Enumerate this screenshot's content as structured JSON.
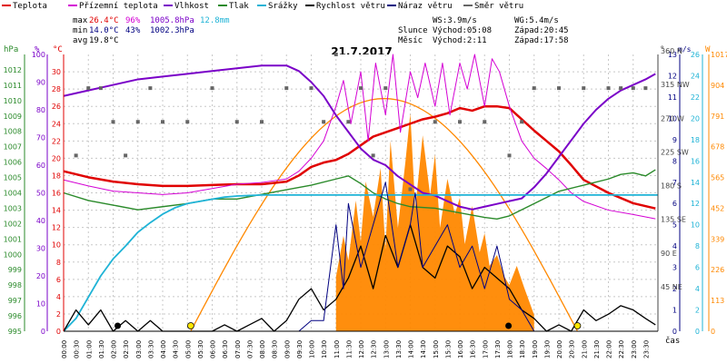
{
  "legend": [
    {
      "label": "Teplota",
      "color": "#e00000"
    },
    {
      "label": "Přízemní teplota",
      "color": "#d400d4"
    },
    {
      "label": "Vlhkost",
      "color": "#7a00c8"
    },
    {
      "label": "Tlak",
      "color": "#2a8a2a"
    },
    {
      "label": "Srážky",
      "color": "#1fb3d6"
    },
    {
      "label": "Rychlost větru",
      "color": "#000000"
    },
    {
      "label": "Náraz větru",
      "color": "#000080"
    },
    {
      "label": "Směr větru",
      "color": "#666666"
    }
  ],
  "stats": {
    "max": {
      "label": "max",
      "temp": "26.4°C",
      "hum": "96%",
      "press": "1005.8hPa",
      "rain": "12.8mm"
    },
    "min": {
      "label": "min",
      "temp": "14.0°C",
      "hum": "43%",
      "press": "1002.3hPa"
    },
    "avg": {
      "label": "avg",
      "temp": "19.8°C"
    }
  },
  "wind_info": {
    "ws": "WS:3.9m/s",
    "wg": "WG:5.4m/s"
  },
  "sun": {
    "label": "Slunce",
    "rise": "Východ:05:08",
    "set": "Západ:20:45"
  },
  "moon": {
    "label": "Měsíc",
    "rise": "Východ:2:11",
    "set": "Západ:17:58"
  },
  "title": "21.7.2017",
  "axis_units": {
    "hpa": "hPa",
    "pct": "%",
    "degc": "°C",
    "deg": "°",
    "ms": "m/s",
    "wm2": "W",
    "time": "čas"
  },
  "colors": {
    "temp": "#e00000",
    "ground": "#d400d4",
    "hum": "#7a00c8",
    "press": "#2a8a2a",
    "rain": "#1fb3d6",
    "wind": "#000000",
    "gust": "#000080",
    "dir": "#666666",
    "solar": "#ff8800",
    "solar_curve": "#ff8800"
  },
  "chart_data": {
    "type": "line",
    "title": "21.7.2017",
    "x_ticks": [
      "00:00",
      "00:30",
      "01:00",
      "01:30",
      "02:00",
      "02:30",
      "03:00",
      "03:30",
      "04:00",
      "04:30",
      "05:00",
      "05:30",
      "06:00",
      "06:30",
      "07:00",
      "07:30",
      "08:00",
      "08:30",
      "09:00",
      "09:30",
      "10:00",
      "10:30",
      "11:00",
      "11:30",
      "12:00",
      "12:30",
      "13:00",
      "13:30",
      "14:00",
      "14:30",
      "15:00",
      "15:30",
      "16:00",
      "16:30",
      "17:00",
      "17:30",
      "18:00",
      "18:30",
      "19:00",
      "19:30",
      "20:00",
      "20:30",
      "21:00",
      "21:30",
      "22:00",
      "22:30",
      "23:00",
      "23:30"
    ],
    "axes": {
      "pressure": {
        "unit": "hPa",
        "ylim": [
          995,
          1013
        ],
        "ticks": [
          "995",
          "996",
          "997",
          "998",
          "999",
          "1000",
          "1001",
          "1002",
          "1003",
          "1004",
          "1005",
          "1006",
          "1007",
          "1008",
          "1009",
          "1010",
          "1011",
          "1012"
        ]
      },
      "humidity": {
        "unit": "%",
        "ylim": [
          0,
          100
        ],
        "ticks": [
          "0",
          "10",
          "20",
          "30",
          "40",
          "50",
          "60",
          "70",
          "80",
          "90",
          "100"
        ]
      },
      "temperature": {
        "unit": "°C",
        "ylim": [
          0,
          32
        ],
        "ticks": [
          "0",
          "2",
          "4",
          "6",
          "8",
          "10",
          "12",
          "14",
          "16",
          "18",
          "20",
          "22",
          "24",
          "26",
          "28",
          "30"
        ]
      },
      "direction": {
        "unit": "°",
        "ticks": [
          "45 NE",
          "90 E",
          "135 SE",
          "180 S",
          "225 SW",
          "270 W",
          "315 NW",
          "360 N"
        ]
      },
      "wind": {
        "unit": "m/s",
        "ylim": [
          0,
          13
        ],
        "ticks": [
          "0",
          "1",
          "2",
          "3",
          "4",
          "5",
          "6",
          "7",
          "8",
          "9",
          "10",
          "11",
          "12",
          "13"
        ]
      },
      "rain": {
        "unit": "mm",
        "ylim": [
          0,
          26
        ],
        "ticks": [
          "0",
          "2",
          "4",
          "6",
          "8",
          "10",
          "12",
          "14",
          "16",
          "18",
          "20",
          "22",
          "24",
          "26"
        ]
      },
      "solar": {
        "unit": "W",
        "ylim": [
          0,
          1017
        ],
        "ticks": [
          "0",
          "113",
          "226",
          "339",
          "452",
          "565",
          "678",
          "791",
          "904",
          "1017"
        ]
      }
    },
    "series": [
      {
        "name": "Teplota",
        "axis": "temperature",
        "x": [
          0,
          1,
          2,
          3,
          4,
          5,
          6,
          7,
          8,
          9,
          9.5,
          10,
          10.5,
          11,
          11.5,
          12,
          12.5,
          13,
          13.5,
          14,
          14.5,
          15,
          15.5,
          16,
          16.5,
          17,
          17.5,
          18,
          18.5,
          19,
          19.5,
          20,
          20.5,
          21,
          22,
          23,
          23.9
        ],
        "values": [
          18.5,
          17.8,
          17.3,
          17,
          16.8,
          16.8,
          16.9,
          17,
          17,
          17.3,
          18,
          19,
          19.5,
          19.8,
          20.5,
          21.5,
          22.5,
          23,
          23.5,
          24,
          24.5,
          24.8,
          25.2,
          25.8,
          25.5,
          26,
          26,
          25.8,
          24.5,
          23.2,
          22,
          20.8,
          19.2,
          17.5,
          16,
          14.8,
          14.2
        ]
      },
      {
        "name": "Přízemní teplota",
        "axis": "temperature",
        "x": [
          0,
          1,
          2,
          3,
          4,
          5,
          6,
          7,
          8,
          9,
          9.5,
          10,
          10.5,
          11,
          11.3,
          11.6,
          12,
          12.3,
          12.6,
          13,
          13.3,
          13.6,
          14,
          14.3,
          14.6,
          15,
          15.3,
          15.6,
          16,
          16.3,
          16.6,
          17,
          17.3,
          17.6,
          18,
          18.5,
          19,
          19.5,
          20,
          20.5,
          21,
          22,
          23,
          23.9
        ],
        "values": [
          17.5,
          16.8,
          16.2,
          16,
          15.8,
          16,
          16.5,
          17,
          17.2,
          17.6,
          18.5,
          20,
          22,
          26,
          29,
          24,
          30,
          22,
          31,
          25,
          32,
          23,
          30,
          27,
          31,
          26,
          31,
          25,
          31,
          28,
          32,
          26,
          31.5,
          30,
          26,
          22,
          20,
          18.8,
          17.5,
          16,
          15,
          14,
          13.5,
          13
        ]
      },
      {
        "name": "Vlhkost",
        "axis": "humidity",
        "x": [
          0,
          1,
          2,
          3,
          4,
          5,
          6,
          7,
          8,
          9,
          9.5,
          10,
          10.5,
          11,
          11.5,
          12,
          12.5,
          13,
          13.5,
          14,
          14.5,
          15,
          15.5,
          16,
          16.5,
          17,
          17.5,
          18,
          18.5,
          19,
          19.5,
          20,
          20.5,
          21,
          21.5,
          22,
          22.5,
          23,
          23.5,
          23.9
        ],
        "values": [
          85,
          87,
          89,
          91,
          92,
          93,
          94,
          95,
          96,
          96,
          94,
          90,
          85,
          78,
          72,
          66,
          62,
          60,
          56,
          53,
          50,
          49,
          47,
          45,
          44,
          45,
          46,
          47,
          48,
          52,
          57,
          63,
          69,
          75,
          80,
          84,
          87,
          89,
          91,
          93
        ]
      },
      {
        "name": "Tlak",
        "axis": "pressure",
        "x": [
          0,
          1,
          2,
          3,
          4,
          5,
          6,
          7,
          8,
          9,
          10,
          11,
          11.5,
          12,
          12.5,
          13,
          13.5,
          14,
          15,
          16,
          17,
          17.5,
          18,
          18.5,
          19,
          19.5,
          20,
          21,
          22,
          22.5,
          23,
          23.5,
          23.9
        ],
        "values": [
          1004,
          1003.5,
          1003.2,
          1002.9,
          1003.1,
          1003.3,
          1003.6,
          1003.6,
          1003.9,
          1004.2,
          1004.5,
          1004.9,
          1005.1,
          1004.6,
          1004,
          1003.6,
          1003.3,
          1003.1,
          1003,
          1002.7,
          1002.4,
          1002.3,
          1002.5,
          1002.9,
          1003.3,
          1003.7,
          1004.1,
          1004.5,
          1004.9,
          1005.2,
          1005.3,
          1005.1,
          1005.5
        ]
      },
      {
        "name": "Srážky",
        "axis": "rain",
        "x": [
          0,
          0.5,
          1,
          1.5,
          2,
          2.5,
          3,
          3.5,
          4,
          4.5,
          5,
          5.5,
          6,
          6.5,
          7,
          7.5,
          8,
          8.5,
          24
        ],
        "values": [
          0,
          1.2,
          3.2,
          5.2,
          6.8,
          8,
          9.3,
          10.2,
          11,
          11.6,
          12,
          12.2,
          12.4,
          12.6,
          12.7,
          12.75,
          12.8,
          12.8,
          12.8
        ]
      },
      {
        "name": "Rychlost větru",
        "axis": "wind",
        "x": [
          0,
          0.5,
          1,
          1.5,
          2,
          2.5,
          3,
          3.5,
          4,
          4.5,
          5,
          5.5,
          6,
          6.5,
          7,
          7.5,
          8,
          8.5,
          9,
          9.5,
          10,
          10.5,
          11,
          11.5,
          12,
          12.5,
          13,
          13.5,
          14,
          14.5,
          15,
          15.5,
          16,
          16.5,
          17,
          17.5,
          18,
          18.5,
          19,
          19.5,
          20,
          20.5,
          21,
          21.5,
          22,
          22.5,
          23,
          23.5,
          23.9
        ],
        "values": [
          0,
          1,
          0.3,
          1,
          0,
          0.5,
          0,
          0.5,
          0,
          0,
          0,
          0,
          0,
          0.3,
          0,
          0.3,
          0.6,
          0,
          0.5,
          1.5,
          2,
          1,
          1.5,
          2.5,
          4,
          2,
          4.5,
          3,
          5,
          3,
          2.5,
          4,
          3.5,
          2,
          3,
          2.5,
          2,
          1,
          0.6,
          0,
          0.3,
          0,
          1,
          0.5,
          0.8,
          1.2,
          1,
          0.6,
          0.3
        ]
      },
      {
        "name": "Náraz větru",
        "axis": "wind",
        "x": [
          0,
          1,
          2,
          3,
          4,
          5,
          6,
          7,
          8,
          9,
          9.5,
          10,
          10.5,
          11,
          11.3,
          11.5,
          12,
          12.5,
          13,
          13.5,
          14,
          14.2,
          14.5,
          15,
          15.5,
          16,
          16.5,
          17,
          17.5,
          18,
          18.5,
          19,
          20,
          21,
          22,
          23,
          23.9
        ],
        "values": [
          0,
          0,
          0,
          0,
          0,
          0,
          0,
          0,
          0,
          0,
          0,
          0.5,
          0.5,
          5,
          2,
          6,
          3,
          5,
          7,
          3,
          5,
          6.5,
          3,
          4,
          5,
          3,
          4,
          2,
          4,
          1.5,
          1,
          0,
          0,
          0,
          0,
          0,
          0
        ]
      },
      {
        "name": "Směr větru",
        "axis": "direction",
        "x": [
          0.5,
          1,
          1.5,
          2,
          2.5,
          3,
          3.5,
          4,
          5,
          6,
          7,
          8,
          9,
          10,
          10.5,
          11,
          11.5,
          12,
          12.5,
          13,
          14,
          15,
          16,
          17,
          18,
          18.5,
          19,
          20,
          21,
          22,
          22.5,
          23,
          23.5
        ],
        "values": [
          225,
          315,
          315,
          270,
          225,
          270,
          315,
          270,
          270,
          315,
          270,
          270,
          315,
          315,
          270,
          360,
          270,
          315,
          225,
          315,
          180,
          270,
          270,
          270,
          225,
          270,
          315,
          315,
          315,
          315,
          315,
          315,
          315
        ]
      }
    ],
    "solar_radiation": {
      "axis": "solar",
      "x": [
        11,
        11.3,
        11.5,
        11.8,
        12,
        12.2,
        12.5,
        12.8,
        13,
        13.2,
        13.5,
        13.8,
        14,
        14.2,
        14.5,
        14.8,
        15,
        15.2,
        15.5,
        15.8,
        16,
        16.2,
        16.5,
        16.8,
        17,
        17.2,
        17.5,
        17.8,
        18,
        18.3,
        18.6,
        19
      ],
      "values": [
        200,
        350,
        260,
        480,
        330,
        550,
        420,
        600,
        300,
        700,
        380,
        620,
        800,
        450,
        720,
        500,
        650,
        380,
        560,
        430,
        490,
        320,
        460,
        290,
        360,
        240,
        280,
        200,
        170,
        240,
        160,
        60
      ]
    },
    "solar_theoretical": {
      "axis": "solar",
      "rise": "05:08",
      "set": "20:45",
      "peak": 855
    }
  }
}
